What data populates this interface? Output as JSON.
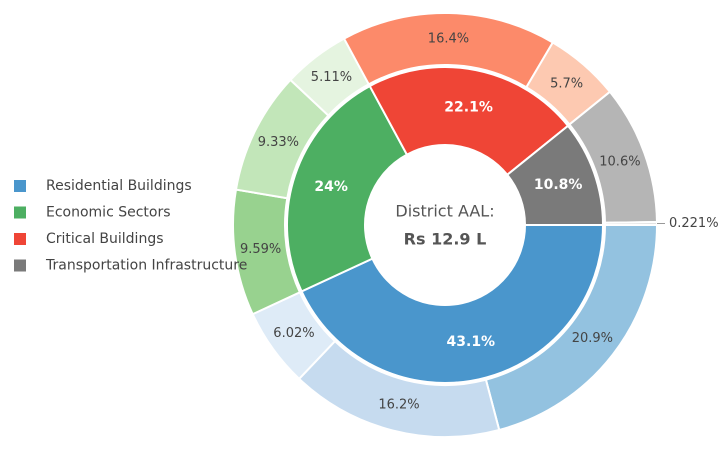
{
  "chart_data": {
    "type": "sunburst",
    "center_text": [
      "District AAL:",
      "Rs 12.9 L"
    ],
    "legend": "left",
    "categories": [
      "Residential Buildings",
      "Economic Sectors",
      "Critical Buildings",
      "Transportation Infrastructure"
    ],
    "values": [
      43.1,
      24,
      22.1,
      10.8
    ],
    "value_labels": [
      "43.1%",
      "24%",
      "22.1%",
      "10.8%"
    ],
    "colors": [
      "#4a96cc",
      "#4daf62",
      "#ef4536",
      "#7a7a7a"
    ],
    "children": [
      {
        "values": [
          20.9,
          16.2,
          6.02
        ],
        "value_labels": [
          "20.9%",
          "16.2%",
          "6.02%"
        ],
        "colors": [
          "#93c2e0",
          "#c6dbef",
          "#deebf7"
        ]
      },
      {
        "values": [
          9.59,
          9.33,
          5.11
        ],
        "value_labels": [
          "9.59%",
          "9.33%",
          "5.11%"
        ],
        "colors": [
          "#98d28f",
          "#c2e6b9",
          "#e5f4e0"
        ]
      },
      {
        "values": [
          16.4,
          5.7
        ],
        "value_labels": [
          "16.4%",
          "5.7%"
        ],
        "colors": [
          "#fc8a6a",
          "#fdc9b1"
        ]
      },
      {
        "values": [
          10.6,
          0.221
        ],
        "value_labels": [
          "10.6%",
          "0.221%"
        ],
        "colors": [
          "#b5b5b5",
          "#e0e0e0"
        ]
      }
    ]
  }
}
